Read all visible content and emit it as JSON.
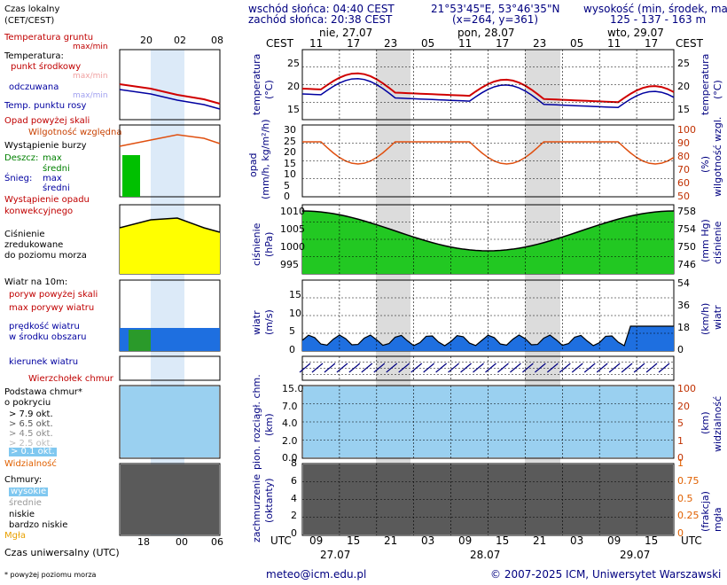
{
  "header": {
    "sunrise": "wschód słońca: 04:40 CEST",
    "sunset": "zachód słońca: 20:38 CEST",
    "coords": "21°53'45\"E, 53°46'35\"N",
    "grid": "(x=264,  y=361)",
    "height_title": "wysokość (min, środek, max)",
    "height_values": "125 - 137 - 163 m"
  },
  "legend": {
    "local_time": "Czas lokalny",
    "local_time_sub": "(CET/CEST)",
    "local_ticks": [
      "20",
      "02",
      "08"
    ],
    "soil_temp": "Temperatura gruntu",
    "max_min": "max/min",
    "temperature": "Temperatura:",
    "mid_point": "punkt środkowy",
    "max_min_faint": "max/min",
    "perceived": "odczuwana",
    "max_min_faint2": "max/min",
    "dew_point": "Temp. punktu rosy",
    "precip_above": "Opad powyżej skali",
    "humidity": "Wilgotność względna",
    "storm": "Wystąpienie burzy",
    "rain": "Deszcz:",
    "rain_max": "max",
    "rain_mid": "średni",
    "snow": "Śnieg:",
    "snow_max": "max",
    "snow_mid": "średni",
    "conv": "Wystąpienie opadu",
    "conv2": "konwekcyjnego",
    "pressure": "Ciśnienie",
    "pressure2": "zredukowane",
    "pressure3": "do poziomu morza",
    "wind_10m": "Wiatr na 10m:",
    "gust_above": "poryw powyżej skali",
    "max_gust": "max porywy wiatru",
    "wind_speed": "prędkość wiatru",
    "wind_speed2": "w środku obszaru",
    "wind_dir": "kierunek wiatru",
    "cb": "Wierzchołek chmur",
    "cloud_base": "Podstawa chmur*",
    "cloud_base2": "o pokryciu",
    "okt79": "> 7.9 okt.",
    "okt65": "> 6.5 okt.",
    "okt45": "> 4.5 okt.",
    "okt25": "> 2.5 okt.",
    "okt01": "> 0.1 okt.",
    "visibility": "Widzialność",
    "clouds": "Chmury:",
    "high": "wysokie",
    "mid": "średnie",
    "low": "niskie",
    "very_low": "bardzo niskie",
    "fog": "Mgła",
    "utc": "Czas uniwersalny (UTC)",
    "utc_ticks": [
      "18",
      "00",
      "06"
    ],
    "footnote": "* powyżej poziomu morza"
  },
  "main": {
    "cest": "CEST",
    "days_top": [
      "nie, 27.07",
      "pon, 28.07",
      "wto, 29.07"
    ],
    "hours_top": [
      "11",
      "17",
      "23",
      "05",
      "11",
      "17",
      "23",
      "05",
      "11",
      "17"
    ],
    "hours_bottom": [
      "09",
      "15",
      "21",
      "03",
      "09",
      "15",
      "21",
      "03",
      "09",
      "15"
    ],
    "days_bottom": [
      "27.07",
      "28.07",
      "29.07"
    ],
    "utc": "UTC",
    "panels": {
      "temp": {
        "left": "temperatura",
        "left2": "(°C)",
        "right": "temperatura",
        "right2": "(°C)",
        "ticks": [
          "25",
          "20",
          "15"
        ]
      },
      "precip": {
        "left": "opad",
        "left2": "(mm/h, kg/m²/h)",
        "right": "wilgotność wzgl.",
        "right2": "(%)",
        "ticks_l": [
          "30",
          "25",
          "20",
          "15",
          "10",
          "5",
          "0"
        ],
        "ticks_r": [
          "100",
          "90",
          "80",
          "70",
          "60",
          "50"
        ]
      },
      "pressure": {
        "left": "ciśnienie",
        "left2": "(hPa)",
        "right": "ciśnienie",
        "right2": "(mm Hg)",
        "ticks_l": [
          "1010",
          "1005",
          "1000",
          "995"
        ],
        "ticks_r": [
          "758",
          "754",
          "750",
          "746"
        ]
      },
      "wind": {
        "left": "wiatr",
        "left2": "(m/s)",
        "right": "wiatr",
        "right2": "(km/h)",
        "ticks_l": [
          "15",
          "10",
          "5",
          "0"
        ],
        "ticks_r": [
          "54",
          "36",
          "18",
          "0"
        ]
      },
      "clouds": {
        "left": "pion. rozciągł. chm.",
        "left2": "(km)",
        "right": "widzialność",
        "right2": "(km)",
        "ticks_l": [
          "15.0",
          "7.0",
          "4.0",
          "2.0",
          "0.0"
        ],
        "ticks_r": [
          "100",
          "20",
          "5",
          "1",
          "0"
        ]
      },
      "cover": {
        "left": "zachmurzenie",
        "left2": "(oktanty)",
        "right": "mgła",
        "right2": "(frakcja)",
        "ticks_l": [
          "8",
          "6",
          "4",
          "2",
          "0"
        ],
        "ticks_r": [
          "1",
          "0.75",
          "0.5",
          "0.25",
          "0"
        ]
      }
    }
  },
  "footer": {
    "email": "meteo@icm.edu.pl",
    "copyright": "© 2007-2025 ICM, Uniwersytet Warszawski"
  },
  "colors": {
    "red": "#d00000",
    "blue": "#0000a0",
    "green": "#00c000",
    "yellow": "#ffff00",
    "night": "#dcdcdc"
  }
}
